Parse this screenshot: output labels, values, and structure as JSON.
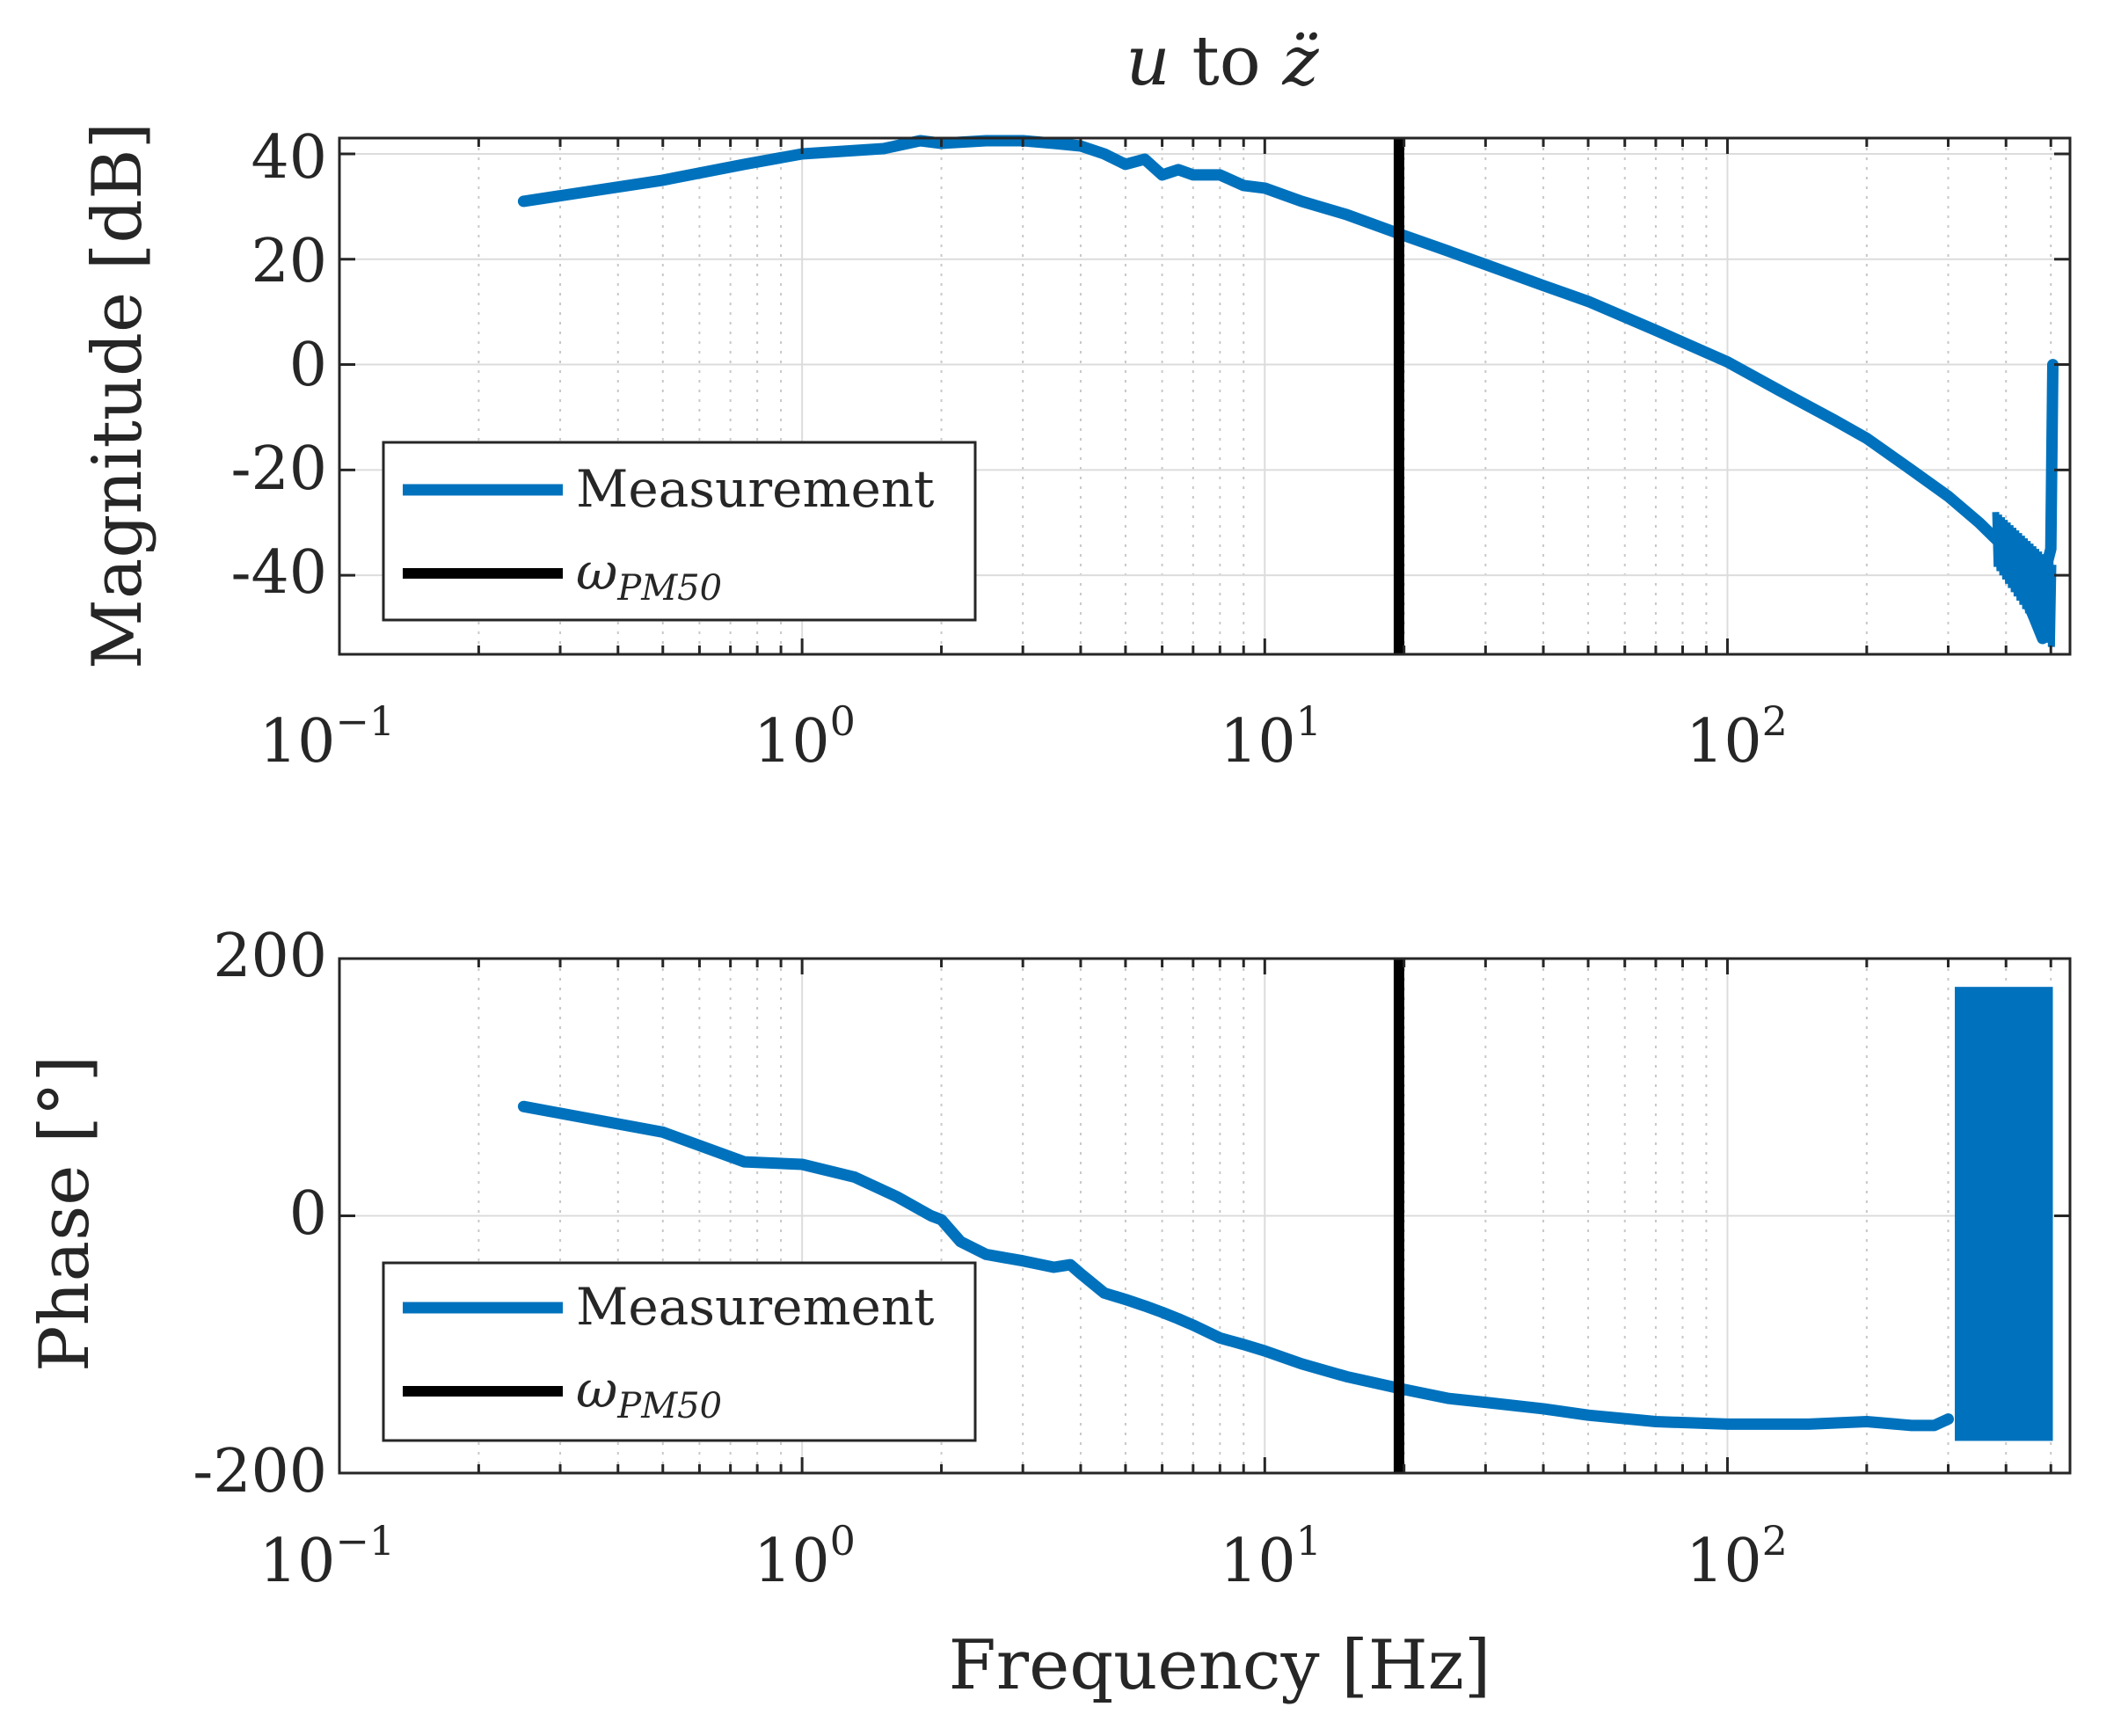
{
  "chart_data": [
    {
      "type": "line",
      "title_var": "u",
      "title_mid": " to ",
      "title_var2": "z̈",
      "xscale": "log",
      "xlim": [
        0.1,
        550
      ],
      "ylim": [
        -55,
        43
      ],
      "xlabel": "",
      "ylabel": "Magnitude [dB]",
      "yticks": [
        -40,
        -20,
        0,
        20,
        40
      ],
      "ytick_labels": [
        "-40",
        "-20",
        "0",
        "20",
        "40"
      ],
      "xtick_bases": [
        "10",
        "10",
        "10",
        "10"
      ],
      "xtick_exps": [
        "−1",
        "0",
        "1",
        "2"
      ],
      "xticks": [
        0.1,
        1,
        10,
        100
      ],
      "grid": true,
      "legend": {
        "placement": "lower-left",
        "entries": [
          "Measurement",
          "ω",
          "PM50"
        ]
      },
      "series": [
        {
          "name": "Measurement",
          "color": "#0072BD",
          "x": [
            0.25,
            0.5,
            0.75,
            1.0,
            1.5,
            1.8,
            2.0,
            2.5,
            3.0,
            3.5,
            4.0,
            4.5,
            5.0,
            5.5,
            6.0,
            6.5,
            7.0,
            8.0,
            9.0,
            10,
            12,
            15,
            20,
            25,
            30,
            40,
            50,
            70,
            100,
            130,
            170,
            200,
            250,
            300,
            350,
            400,
            430,
            460,
            480,
            490,
            500,
            505
          ],
          "y": [
            31,
            35,
            38,
            40,
            41,
            42.5,
            42,
            42.5,
            42.5,
            42,
            41.5,
            40,
            38,
            39,
            36,
            37,
            36,
            36,
            34,
            33.5,
            31,
            28.5,
            24.5,
            21.5,
            19,
            15,
            12,
            6.5,
            0.5,
            -5,
            -10.5,
            -14,
            -20,
            -25,
            -30,
            -35,
            -42,
            -48,
            -52,
            -38,
            -35,
            0
          ],
          "band": {
            "x": [
              380,
              505
            ],
            "lo": -54,
            "hi": -30
          }
        },
        {
          "name": "ωPM50",
          "color": "#000000",
          "vline_x": 19.5
        }
      ]
    },
    {
      "type": "line",
      "xscale": "log",
      "xlim": [
        0.1,
        550
      ],
      "ylim": [
        -200,
        200
      ],
      "xlabel": "Frequency [Hz]",
      "ylabel": "Phase [°]",
      "yticks": [
        -200,
        0,
        200
      ],
      "ytick_labels": [
        "-200",
        "0",
        "200"
      ],
      "xtick_bases": [
        "10",
        "10",
        "10",
        "10"
      ],
      "xtick_exps": [
        "−1",
        "0",
        "1",
        "2"
      ],
      "xticks": [
        0.1,
        1,
        10,
        100
      ],
      "grid": true,
      "legend": {
        "placement": "lower-left",
        "entries": [
          "Measurement",
          "ω",
          "PM50"
        ]
      },
      "series": [
        {
          "name": "Measurement",
          "color": "#0072BD",
          "x": [
            0.25,
            0.5,
            0.75,
            1.0,
            1.3,
            1.6,
            1.9,
            2.0,
            2.2,
            2.5,
            3.0,
            3.5,
            3.8,
            4.0,
            4.5,
            5.0,
            5.5,
            6.0,
            6.5,
            7.0,
            8.0,
            9.0,
            10,
            12,
            15,
            20,
            25,
            30,
            40,
            50,
            70,
            100,
            150,
            200,
            250,
            280,
            300
          ],
          "y": [
            85,
            65,
            42,
            40,
            30,
            15,
            0,
            -3,
            -20,
            -30,
            -35,
            -40,
            -38,
            -45,
            -60,
            -65,
            -70,
            -75,
            -80,
            -85,
            -95,
            -100,
            -105,
            -115,
            -125,
            -135,
            -142,
            -145,
            -150,
            -155,
            -160,
            -162,
            -162,
            -160,
            -163,
            -163,
            -158
          ],
          "band": {
            "x": [
              310,
              505
            ],
            "lo": -175,
            "hi": 178
          }
        },
        {
          "name": "ωPM50",
          "color": "#000000",
          "vline_x": 19.5
        }
      ]
    }
  ]
}
